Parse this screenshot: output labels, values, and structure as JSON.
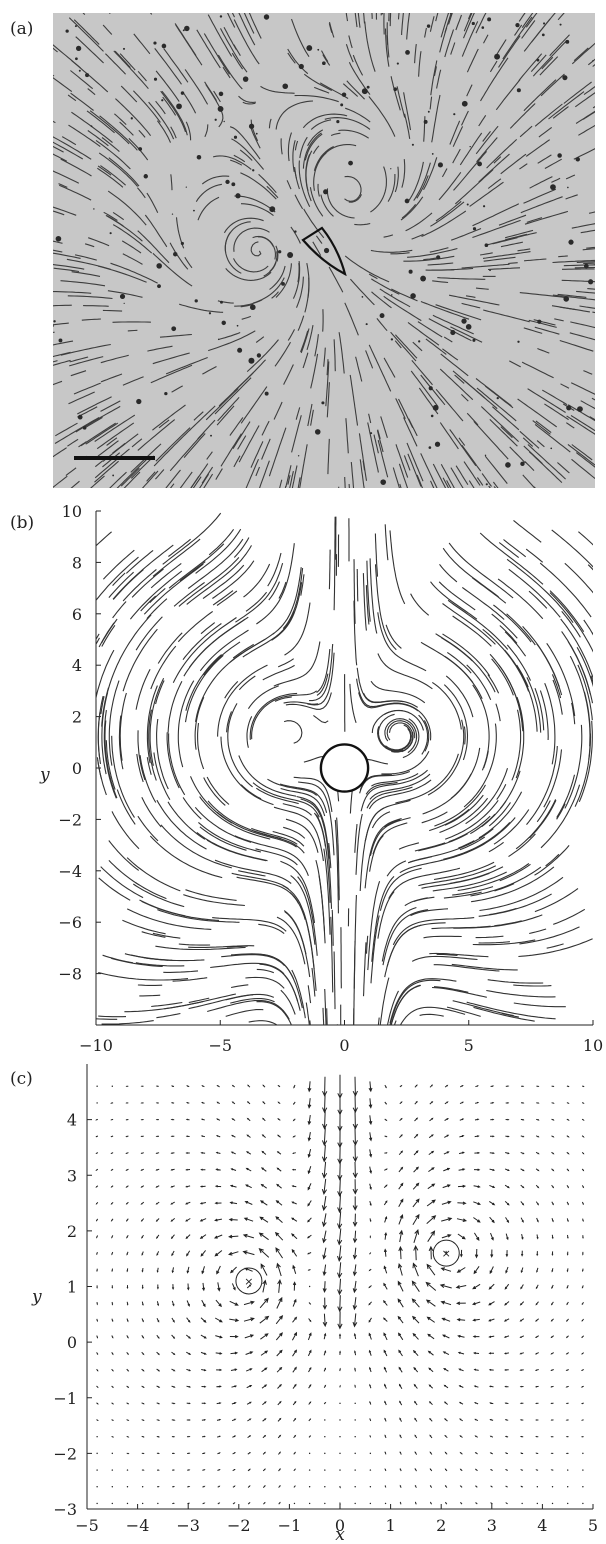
{
  "figure": {
    "panels": [
      {
        "id": "a",
        "label": "(a)"
      },
      {
        "id": "b",
        "label": "(b)"
      },
      {
        "id": "c",
        "label": "(c)"
      }
    ],
    "colors": {
      "ink": "#222222",
      "photo_bg": "#c7c7c7",
      "streak": "#3d3d3d"
    }
  },
  "chart_data": [
    {
      "panel": "a",
      "type": "other",
      "title": "",
      "description_kind": "photograph-streaklines",
      "scale_bar": true,
      "body_shape": "shield"
    },
    {
      "panel": "b",
      "type": "streamlines",
      "xlabel": "",
      "ylabel": "y",
      "xlim": [
        -10,
        10
      ],
      "ylim": [
        -10,
        10
      ],
      "xticks": [
        -10,
        -5,
        0,
        5,
        10
      ],
      "yticks": [
        -8,
        -6,
        -4,
        -2,
        0,
        2,
        4,
        6,
        8,
        10
      ],
      "obstacle": {
        "cx": 0,
        "cy": 0,
        "r": 0.95
      },
      "vortices": [
        {
          "x": -2.2,
          "y": 1.3,
          "sign": 1
        },
        {
          "x": 2.2,
          "y": 1.3,
          "sign": -1
        }
      ]
    },
    {
      "panel": "c",
      "type": "quiver",
      "xlabel": "x",
      "ylabel": "y",
      "xlim": [
        -5,
        5
      ],
      "ylim": [
        -3,
        5
      ],
      "xticks": [
        -5,
        -4,
        -3,
        -2,
        -1,
        0,
        1,
        2,
        3,
        4,
        5
      ],
      "yticks": [
        -3,
        -2,
        -1,
        0,
        1,
        2,
        3,
        4
      ],
      "vortex_markers": [
        {
          "x": -1.8,
          "y": 1.1
        },
        {
          "x": 2.1,
          "y": 1.6
        }
      ]
    }
  ]
}
